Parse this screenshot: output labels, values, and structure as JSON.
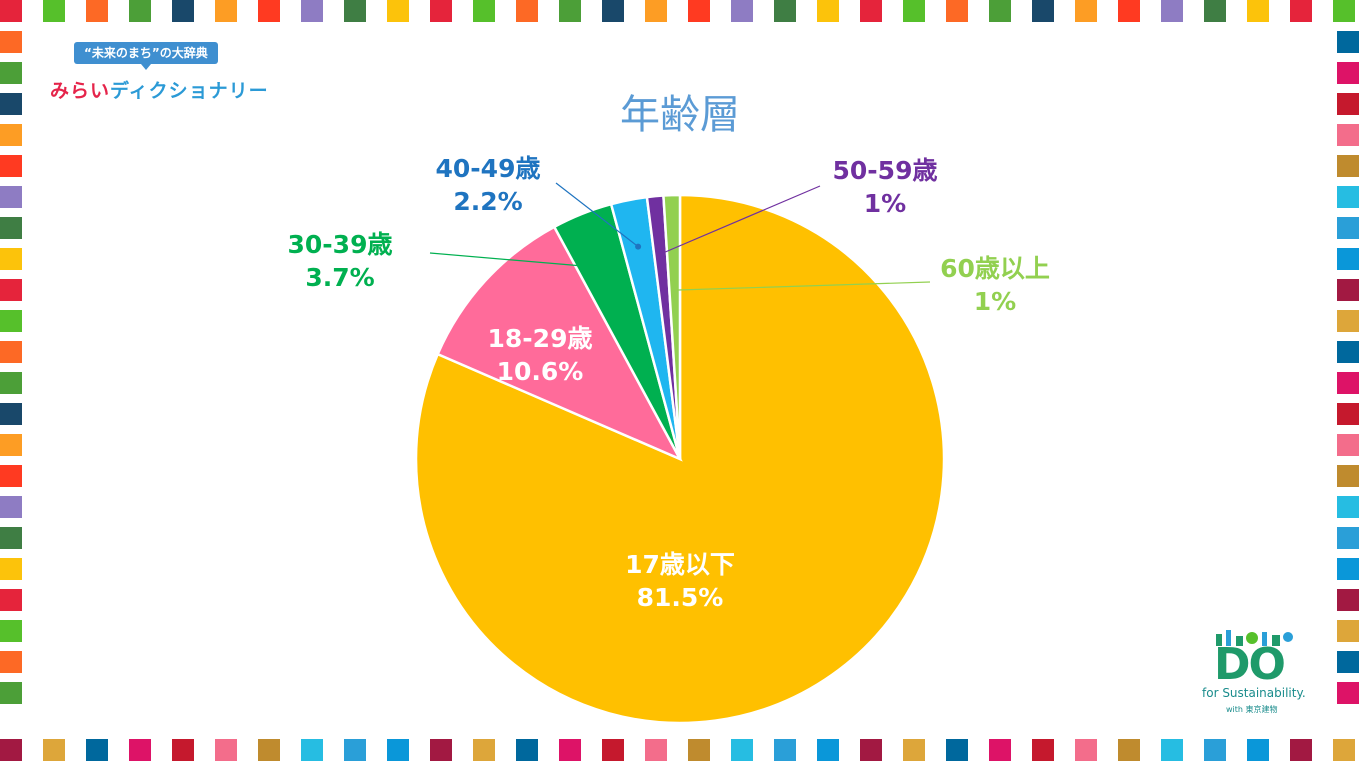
{
  "header": {
    "logo_tagline": "“未来のまち”の大辞典",
    "logo_name_part1": "みらい",
    "logo_name_part2": "ディクショナリー"
  },
  "footer": {
    "brand": "DO",
    "brand_tagline": "for Sustainability.",
    "brand_sub": "with 東京建物"
  },
  "border_colors": [
    "#e5243b",
    "#dda63a",
    "#4c9f38",
    "#c5192d",
    "#ff3a21",
    "#26bde2",
    "#fcc30b",
    "#a21942",
    "#fd6925",
    "#dd1367",
    "#fd9d24",
    "#bf8b2e",
    "#3f7e44",
    "#0a97d9",
    "#56c02b",
    "#00689d",
    "#19486a",
    "#f36d8b",
    "#8e7cc3",
    "#2a9fd8"
  ],
  "chart_data": {
    "type": "pie",
    "title": "年齢層",
    "start_angle_deg": 0,
    "direction": "clockwise",
    "slices": [
      {
        "label": "17歳以下",
        "value": 81.5,
        "value_text": "81.5%",
        "color": "#ffc000",
        "label_color": "#ffffff"
      },
      {
        "label": "18-29歳",
        "value": 10.6,
        "value_text": "10.6%",
        "color": "#ff6b9a",
        "label_color": "#ffffff"
      },
      {
        "label": "30-39歳",
        "value": 3.7,
        "value_text": "3.7%",
        "color": "#00b050",
        "label_color": "#00b050"
      },
      {
        "label": "40-49歳",
        "value": 2.2,
        "value_text": "2.2%",
        "color": "#1fb6f0",
        "label_color": "#1f74c0"
      },
      {
        "label": "50-59歳",
        "value": 1,
        "value_text": "1%",
        "color": "#7030a0",
        "label_color": "#7030a0"
      },
      {
        "label": "60歳以上",
        "value": 1,
        "value_text": "1%",
        "color": "#92d050",
        "label_color": "#92d050"
      }
    ]
  }
}
